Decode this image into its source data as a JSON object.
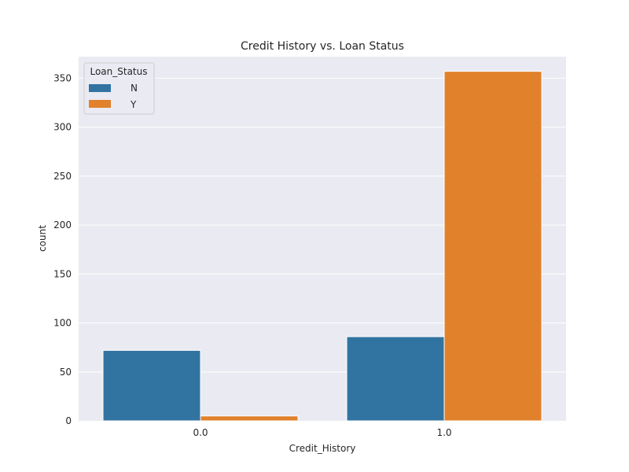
{
  "chart_data": {
    "type": "bar",
    "title": "Credit History vs. Loan Status",
    "xlabel": "Credit_History",
    "ylabel": "count",
    "categories": [
      "0.0",
      "1.0"
    ],
    "series": [
      {
        "name": "N",
        "values": [
          72,
          86
        ],
        "color": "#3274a1"
      },
      {
        "name": "Y",
        "values": [
          5,
          357
        ],
        "color": "#e1812c"
      }
    ],
    "ylim": [
      0,
      372
    ],
    "yticks": [
      0,
      50,
      100,
      150,
      200,
      250,
      300,
      350
    ],
    "grid": true,
    "background": "#eaeaf2",
    "legend": {
      "title": "Loan_Status",
      "placement": "top-left"
    }
  }
}
